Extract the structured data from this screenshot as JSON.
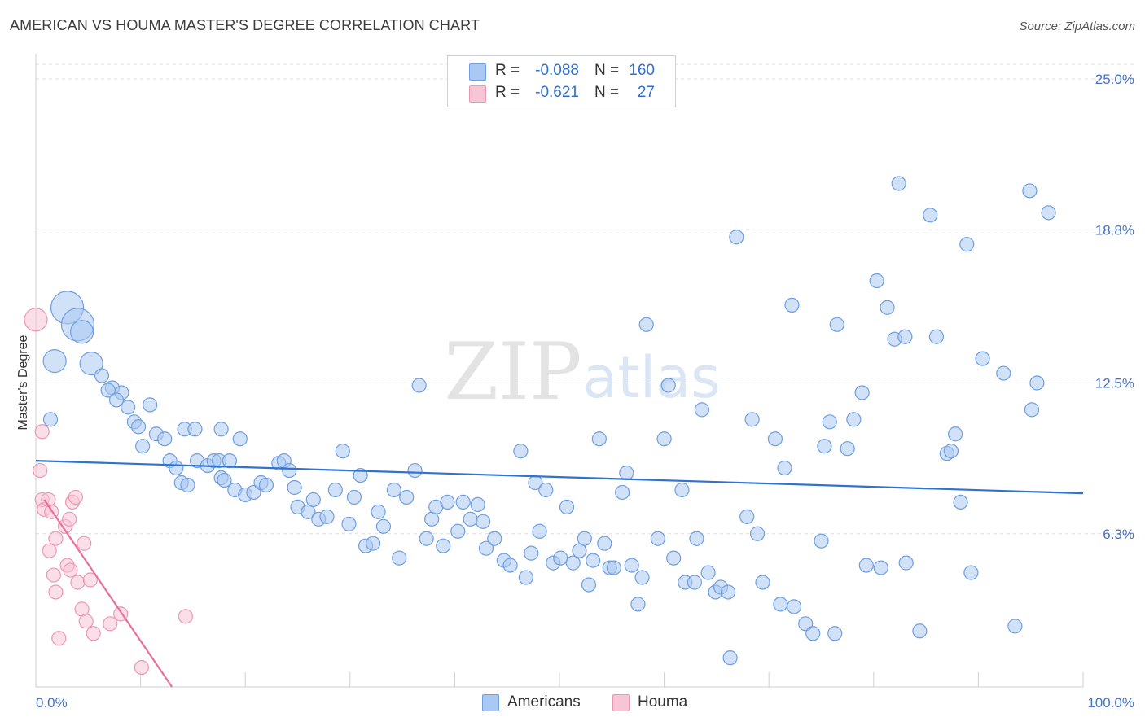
{
  "title": "AMERICAN VS HOUMA MASTER'S DEGREE CORRELATION CHART",
  "source": "Source: ZipAtlas.com",
  "watermark": {
    "part1": "ZIP",
    "part2": "atlas"
  },
  "colors": {
    "americans_fill": "#a9c9f3",
    "americans_stroke": "#6f9fe0",
    "americans_line": "#2f72cf",
    "houma_fill": "#f7c5d5",
    "houma_stroke": "#ec98b2",
    "houma_line": "#e8709a",
    "tick_label": "#4472c4",
    "grid": "#dcdcdc"
  },
  "legend": {
    "r_label": "R =",
    "n_label": "N =",
    "americans": {
      "r": "-0.088",
      "n": "160"
    },
    "houma": {
      "r": "-0.621",
      "n": "27"
    }
  },
  "bottom_legend": {
    "americans": "Americans",
    "houma": "Houma"
  },
  "chart_data": {
    "type": "scatter",
    "title": "AMERICAN VS HOUMA MASTER'S DEGREE CORRELATION CHART",
    "xlabel": "",
    "ylabel": "Master's Degree",
    "xlim": [
      0,
      100
    ],
    "ylim": [
      0,
      25
    ],
    "x_tick_labels": [
      "0.0%",
      "100.0%"
    ],
    "y_ticks": [
      6.3,
      12.5,
      18.8,
      25.0
    ],
    "y_tick_labels": [
      "6.3%",
      "12.5%",
      "18.8%",
      "25.0%"
    ],
    "grid": "horizontal dashed",
    "legend_position": "top-center",
    "series": [
      {
        "name": "Americans",
        "trend": {
          "x": [
            0,
            100
          ],
          "y": [
            9.3,
            7.96
          ]
        },
        "points": [
          [
            3.0,
            15.6,
            3
          ],
          [
            4.0,
            14.9,
            3
          ],
          [
            4.4,
            14.6,
            2
          ],
          [
            1.8,
            13.4,
            2
          ],
          [
            5.3,
            13.3,
            2
          ],
          [
            6.3,
            12.8,
            1
          ],
          [
            7.3,
            12.3,
            1
          ],
          [
            6.9,
            12.2,
            1
          ],
          [
            8.2,
            12.1,
            1
          ],
          [
            7.7,
            11.8,
            1
          ],
          [
            1.4,
            11.0,
            1
          ],
          [
            8.8,
            11.5,
            1
          ],
          [
            10.9,
            11.6,
            1
          ],
          [
            9.4,
            10.9,
            1
          ],
          [
            9.8,
            10.7,
            1
          ],
          [
            10.2,
            9.9,
            1
          ],
          [
            11.5,
            10.4,
            1
          ],
          [
            12.3,
            10.2,
            1
          ],
          [
            14.2,
            10.6,
            1
          ],
          [
            15.2,
            10.6,
            1
          ],
          [
            17.7,
            10.6,
            1
          ],
          [
            19.5,
            10.2,
            1
          ],
          [
            12.8,
            9.3,
            1
          ],
          [
            13.4,
            9.0,
            1
          ],
          [
            13.9,
            8.4,
            1
          ],
          [
            14.5,
            8.3,
            1
          ],
          [
            15.4,
            9.3,
            1
          ],
          [
            16.4,
            9.1,
            1
          ],
          [
            17.0,
            9.3,
            1
          ],
          [
            17.5,
            9.3,
            1
          ],
          [
            18.5,
            9.3,
            1
          ],
          [
            17.7,
            8.6,
            1
          ],
          [
            18.0,
            8.5,
            1
          ],
          [
            19.0,
            8.1,
            1
          ],
          [
            20.0,
            7.9,
            1
          ],
          [
            20.8,
            8.0,
            1
          ],
          [
            21.5,
            8.4,
            1
          ],
          [
            22.0,
            8.3,
            1
          ],
          [
            23.2,
            9.2,
            1
          ],
          [
            23.7,
            9.3,
            1
          ],
          [
            24.2,
            8.9,
            1
          ],
          [
            24.7,
            8.2,
            1
          ],
          [
            25.0,
            7.4,
            1
          ],
          [
            26.0,
            7.2,
            1
          ],
          [
            26.5,
            7.7,
            1
          ],
          [
            27.0,
            6.9,
            1
          ],
          [
            27.8,
            7.0,
            1
          ],
          [
            28.6,
            8.1,
            1
          ],
          [
            29.3,
            9.7,
            1
          ],
          [
            29.9,
            6.7,
            1
          ],
          [
            30.4,
            7.8,
            1
          ],
          [
            31.0,
            8.7,
            1
          ],
          [
            31.5,
            5.8,
            1
          ],
          [
            32.2,
            5.9,
            1
          ],
          [
            32.7,
            7.2,
            1
          ],
          [
            33.2,
            6.6,
            1
          ],
          [
            34.2,
            8.1,
            1
          ],
          [
            34.7,
            5.3,
            1
          ],
          [
            35.4,
            7.8,
            1
          ],
          [
            36.2,
            8.9,
            1
          ],
          [
            36.6,
            12.4,
            1
          ],
          [
            37.3,
            6.1,
            1
          ],
          [
            37.8,
            6.9,
            1
          ],
          [
            38.2,
            7.4,
            1
          ],
          [
            38.9,
            5.8,
            1
          ],
          [
            39.3,
            7.6,
            1
          ],
          [
            40.3,
            6.4,
            1
          ],
          [
            40.8,
            7.6,
            1
          ],
          [
            41.5,
            6.9,
            1
          ],
          [
            42.2,
            7.5,
            1
          ],
          [
            42.7,
            6.8,
            1
          ],
          [
            43.0,
            5.7,
            1
          ],
          [
            43.8,
            6.1,
            1
          ],
          [
            44.7,
            5.2,
            1
          ],
          [
            45.3,
            5.0,
            1
          ],
          [
            46.8,
            4.5,
            1
          ],
          [
            46.3,
            9.7,
            1
          ],
          [
            47.3,
            5.5,
            1
          ],
          [
            47.7,
            8.4,
            1
          ],
          [
            48.1,
            6.4,
            1
          ],
          [
            48.7,
            8.1,
            1
          ],
          [
            49.4,
            5.1,
            1
          ],
          [
            50.1,
            5.3,
            1
          ],
          [
            50.7,
            7.4,
            1
          ],
          [
            51.3,
            5.1,
            1
          ],
          [
            51.9,
            5.6,
            1
          ],
          [
            52.4,
            6.1,
            1
          ],
          [
            52.8,
            4.2,
            1
          ],
          [
            53.2,
            5.2,
            1
          ],
          [
            53.8,
            10.2,
            1
          ],
          [
            54.3,
            5.9,
            1
          ],
          [
            54.8,
            4.9,
            1
          ],
          [
            55.2,
            4.9,
            1
          ],
          [
            56.0,
            8.0,
            1
          ],
          [
            56.4,
            8.8,
            1
          ],
          [
            56.9,
            5.0,
            1
          ],
          [
            57.5,
            3.4,
            1
          ],
          [
            57.9,
            4.5,
            1
          ],
          [
            58.3,
            14.9,
            1
          ],
          [
            59.4,
            6.1,
            1
          ],
          [
            60.0,
            10.2,
            1
          ],
          [
            60.4,
            12.4,
            1
          ],
          [
            60.9,
            5.3,
            1
          ],
          [
            61.7,
            8.1,
            1
          ],
          [
            62.0,
            4.3,
            1
          ],
          [
            62.9,
            4.3,
            1
          ],
          [
            63.1,
            6.1,
            1
          ],
          [
            63.6,
            11.4,
            1
          ],
          [
            64.2,
            4.7,
            1
          ],
          [
            64.9,
            3.9,
            1
          ],
          [
            65.4,
            4.1,
            1
          ],
          [
            66.1,
            3.9,
            1
          ],
          [
            66.3,
            1.2,
            1
          ],
          [
            66.9,
            18.5,
            1
          ],
          [
            67.9,
            7.0,
            1
          ],
          [
            68.4,
            11.0,
            1
          ],
          [
            68.9,
            6.3,
            1
          ],
          [
            69.4,
            4.3,
            1
          ],
          [
            70.6,
            10.2,
            1
          ],
          [
            71.1,
            3.4,
            1
          ],
          [
            71.5,
            9.0,
            1
          ],
          [
            72.2,
            15.7,
            1
          ],
          [
            72.4,
            3.3,
            1
          ],
          [
            73.5,
            2.6,
            1
          ],
          [
            74.2,
            2.2,
            1
          ],
          [
            75.0,
            6.0,
            1
          ],
          [
            75.3,
            9.9,
            1
          ],
          [
            75.8,
            10.9,
            1
          ],
          [
            76.3,
            2.2,
            1
          ],
          [
            76.5,
            14.9,
            1
          ],
          [
            77.5,
            9.8,
            1
          ],
          [
            78.1,
            11.0,
            1
          ],
          [
            78.9,
            12.1,
            1
          ],
          [
            79.3,
            5.0,
            1
          ],
          [
            80.3,
            16.7,
            1
          ],
          [
            80.7,
            4.9,
            1
          ],
          [
            81.3,
            15.6,
            1
          ],
          [
            82.0,
            14.3,
            1
          ],
          [
            82.4,
            20.7,
            1
          ],
          [
            83.0,
            14.4,
            1
          ],
          [
            83.1,
            5.1,
            1
          ],
          [
            84.4,
            2.3,
            1
          ],
          [
            85.4,
            19.4,
            1
          ],
          [
            86.0,
            14.4,
            1
          ],
          [
            87.0,
            9.6,
            1
          ],
          [
            87.4,
            9.7,
            1
          ],
          [
            87.8,
            10.4,
            1
          ],
          [
            88.3,
            7.6,
            1
          ],
          [
            88.9,
            18.2,
            1
          ],
          [
            89.3,
            4.7,
            1
          ],
          [
            90.4,
            13.5,
            1
          ],
          [
            92.4,
            12.9,
            1
          ],
          [
            93.5,
            2.5,
            1
          ],
          [
            94.9,
            20.4,
            1
          ],
          [
            95.1,
            11.4,
            1
          ],
          [
            95.6,
            12.5,
            1
          ],
          [
            96.7,
            19.5,
            1
          ]
        ]
      },
      {
        "name": "Houma",
        "trend": {
          "x": [
            0.8,
            13.0
          ],
          "y": [
            7.7,
            0.0
          ]
        },
        "points": [
          [
            0.0,
            15.1,
            2
          ],
          [
            0.6,
            10.5,
            1
          ],
          [
            0.4,
            8.9,
            1
          ],
          [
            0.6,
            7.7,
            1
          ],
          [
            0.8,
            7.3,
            1
          ],
          [
            1.2,
            7.7,
            1
          ],
          [
            1.5,
            7.2,
            1
          ],
          [
            1.9,
            6.1,
            1
          ],
          [
            1.3,
            5.6,
            1
          ],
          [
            2.8,
            6.6,
            1
          ],
          [
            3.2,
            6.9,
            1
          ],
          [
            3.5,
            7.6,
            1
          ],
          [
            3.8,
            7.8,
            1
          ],
          [
            3.0,
            5.0,
            1
          ],
          [
            3.3,
            4.8,
            1
          ],
          [
            1.7,
            4.6,
            1
          ],
          [
            1.9,
            3.9,
            1
          ],
          [
            4.0,
            4.3,
            1
          ],
          [
            4.6,
            5.9,
            1
          ],
          [
            5.2,
            4.4,
            1
          ],
          [
            4.4,
            3.2,
            1
          ],
          [
            4.8,
            2.7,
            1
          ],
          [
            5.5,
            2.2,
            1
          ],
          [
            2.2,
            2.0,
            1
          ],
          [
            7.1,
            2.6,
            1
          ],
          [
            8.1,
            3.0,
            1
          ],
          [
            14.3,
            2.9,
            1
          ],
          [
            10.1,
            0.8,
            1
          ]
        ]
      }
    ]
  }
}
